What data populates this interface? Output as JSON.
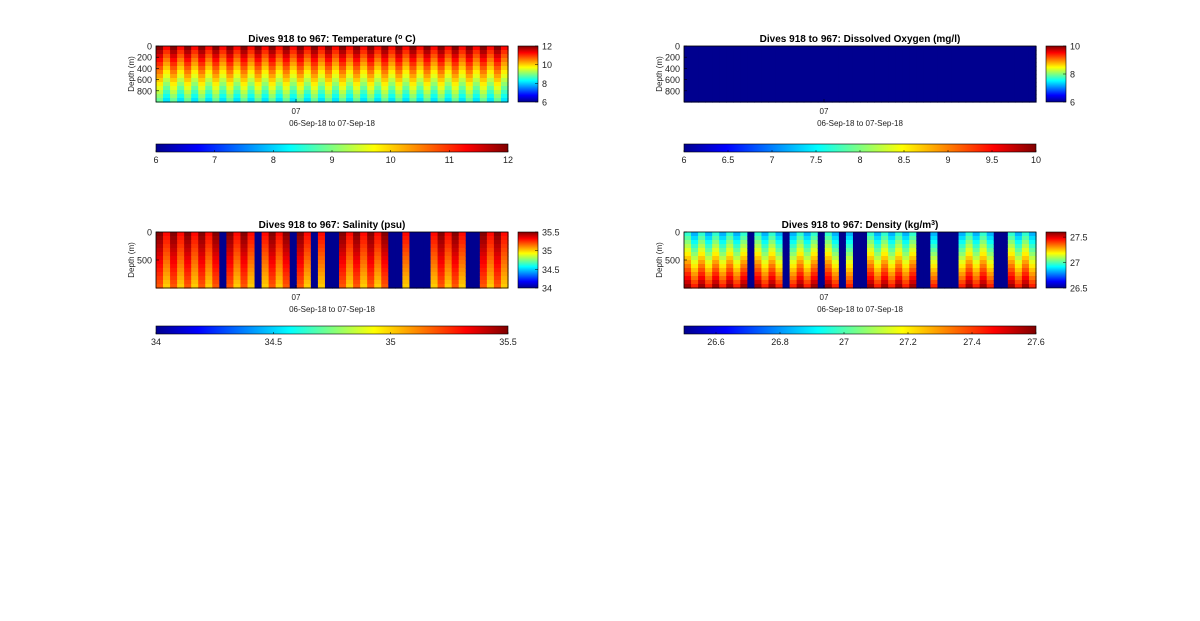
{
  "colormap": [
    "#00008f",
    "#0000ff",
    "#00ffff",
    "#ffff00",
    "#ff0000",
    "#800000"
  ],
  "chart_data": [
    {
      "type": "heatmap",
      "title": "Dives 918 to 967: Temperature (",
      "title_sup": "o",
      "title_tail": " C)",
      "ylabel": "Depth (m)",
      "yticks": [
        "0",
        "200",
        "400",
        "600",
        "800"
      ],
      "ylim": [
        0,
        1000
      ],
      "xtick": "07",
      "xlabel": "06-Sep-18 to 07-Sep-18",
      "clim": [
        6,
        12
      ],
      "colorbar_ticks": [
        "12",
        "10",
        "8",
        "6"
      ],
      "horizontal_colorbar_ticks": [
        "6",
        "7",
        "8",
        "9",
        "10",
        "11",
        "12"
      ],
      "dives": 50,
      "missing_dives": [],
      "value_range": {
        "surface": 11.6,
        "deep": 8.5
      }
    },
    {
      "type": "heatmap",
      "title": "Dives 918 to 967: Dissolved Oxygen (mg/l)",
      "title_sup": "",
      "title_tail": "",
      "ylabel": "Depth (m)",
      "yticks": [
        "0",
        "200",
        "400",
        "600",
        "800"
      ],
      "ylim": [
        0,
        1000
      ],
      "xtick": "07",
      "xlabel": "06-Sep-18 to 07-Sep-18",
      "clim": [
        6,
        10
      ],
      "colorbar_ticks": [
        "10",
        "8",
        "6"
      ],
      "horizontal_colorbar_ticks": [
        "6",
        "6.5",
        "7",
        "7.5",
        "8",
        "8.5",
        "9",
        "9.5",
        "10"
      ],
      "dives": 50,
      "missing_dives": "all",
      "value_range": {
        "surface": 6,
        "deep": 6
      }
    },
    {
      "type": "heatmap",
      "title": "Dives 918 to 967: Salinity (psu)",
      "title_sup": "",
      "title_tail": "",
      "ylabel": "Depth (m)",
      "yticks": [
        "0",
        "500"
      ],
      "ylim": [
        0,
        1000
      ],
      "xtick": "07",
      "xlabel": "06-Sep-18 to 07-Sep-18",
      "clim": [
        34,
        35.5
      ],
      "colorbar_ticks": [
        "35.5",
        "35",
        "34.5",
        "34"
      ],
      "horizontal_colorbar_ticks": [
        "34",
        "34.5",
        "35",
        "35.5"
      ],
      "dives": 50,
      "missing_dives": [
        9,
        14,
        19,
        22,
        24,
        25,
        33,
        34,
        36,
        37,
        38,
        44,
        45
      ],
      "value_range": {
        "surface": 35.4,
        "deep": 35.1
      }
    },
    {
      "type": "heatmap",
      "title": "Dives 918 to 967: Density (kg/m",
      "title_sup": "3",
      "title_tail": ")",
      "ylabel": "Depth (m)",
      "yticks": [
        "0",
        "500"
      ],
      "ylim": [
        0,
        1000
      ],
      "xtick": "07",
      "xlabel": "06-Sep-18 to 07-Sep-18",
      "clim": [
        26.5,
        27.6
      ],
      "colorbar_ticks": [
        "27.5",
        "27",
        "26.5"
      ],
      "horizontal_colorbar_ticks": [
        "26.6",
        "26.8",
        "27",
        "27.2",
        "27.4",
        "27.6"
      ],
      "dives": 50,
      "missing_dives": [
        9,
        14,
        19,
        22,
        24,
        25,
        33,
        34,
        36,
        37,
        38,
        44,
        45
      ],
      "value_range": {
        "surface": 26.9,
        "deep": 27.5
      }
    }
  ]
}
